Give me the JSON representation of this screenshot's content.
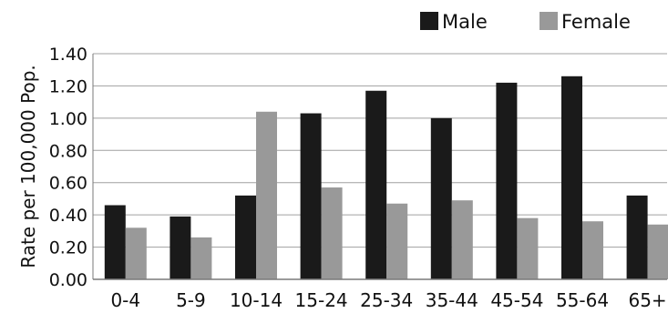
{
  "chart_data": {
    "type": "bar",
    "title": "",
    "xlabel": "",
    "ylabel": "Rate per 100,000 Pop.",
    "ylim": [
      0.0,
      1.4
    ],
    "yticks": [
      "0.00",
      "0.20",
      "0.40",
      "0.60",
      "0.80",
      "1.00",
      "1.20",
      "1.40"
    ],
    "categories": [
      "0-4",
      "5-9",
      "10-14",
      "15-24",
      "25-34",
      "35-44",
      "45-54",
      "55-64",
      "65+"
    ],
    "series": [
      {
        "name": "Male",
        "color": "#1a1a1a",
        "values": [
          0.46,
          0.39,
          0.52,
          1.03,
          1.17,
          1.0,
          1.22,
          1.26,
          0.52
        ]
      },
      {
        "name": "Female",
        "color": "#999999",
        "values": [
          0.32,
          0.26,
          1.04,
          0.57,
          0.47,
          0.49,
          0.38,
          0.36,
          0.34
        ]
      }
    ],
    "grid": true,
    "legend_position": "top-right"
  }
}
